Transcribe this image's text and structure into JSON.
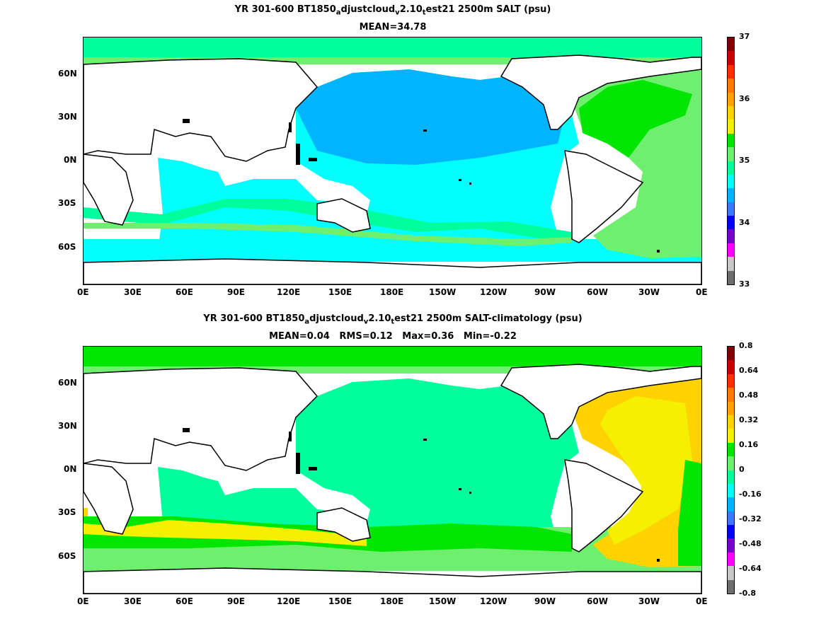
{
  "panels": [
    {
      "title_parts": [
        "YR 301-600 BT1850",
        "a",
        "djustcloud",
        "v",
        "2.10",
        "t",
        "est21 2500m SALT (psu)"
      ],
      "subtitle": "MEAN=34.78",
      "colorbar": {
        "labels": [
          "37",
          "36",
          "35",
          "34",
          "33"
        ],
        "colors": [
          "#7f0000",
          "#c80000",
          "#ff2d00",
          "#ff7a00",
          "#ffa500",
          "#ffd200",
          "#f5f000",
          "#00e600",
          "#6ef06e",
          "#00ff9c",
          "#00ffff",
          "#00b4ff",
          "#3c78ff",
          "#0000ff",
          "#7800c8",
          "#ff00ff",
          "#c8c8c8",
          "#6e6e6e"
        ]
      },
      "xticks": [
        "0E",
        "30E",
        "60E",
        "90E",
        "120E",
        "150E",
        "180E",
        "150W",
        "120W",
        "90W",
        "60W",
        "30W",
        "0E"
      ],
      "yticks": [
        "60N",
        "30N",
        "0N",
        "30S",
        "60S"
      ]
    },
    {
      "title_parts": [
        "YR 301-600 BT1850",
        "a",
        "djustcloud",
        "v",
        "2.10",
        "t",
        "est21 2500m SALT-climatology (psu)"
      ],
      "subtitle": "MEAN=0.04   RMS=0.12   Max=0.36   Min=-0.22",
      "colorbar": {
        "labels": [
          "0.8",
          "0.64",
          "0.48",
          "0.32",
          "0.16",
          "0",
          "-0.16",
          "-0.32",
          "-0.48",
          "-0.64",
          "-0.8"
        ],
        "colors": [
          "#7f0000",
          "#c80000",
          "#ff2d00",
          "#ff7a00",
          "#ffa500",
          "#ffd200",
          "#f5f000",
          "#00e600",
          "#6ef06e",
          "#00ff9c",
          "#00ffff",
          "#00b4ff",
          "#3c78ff",
          "#0000ff",
          "#7800c8",
          "#ff00ff",
          "#c8c8c8",
          "#6e6e6e"
        ]
      },
      "xticks": [
        "0E",
        "30E",
        "60E",
        "90E",
        "120E",
        "150E",
        "180E",
        "150W",
        "120W",
        "90W",
        "60W",
        "30W",
        "0E"
      ],
      "yticks": [
        "60N",
        "30N",
        "0N",
        "30S",
        "60S"
      ]
    }
  ]
}
